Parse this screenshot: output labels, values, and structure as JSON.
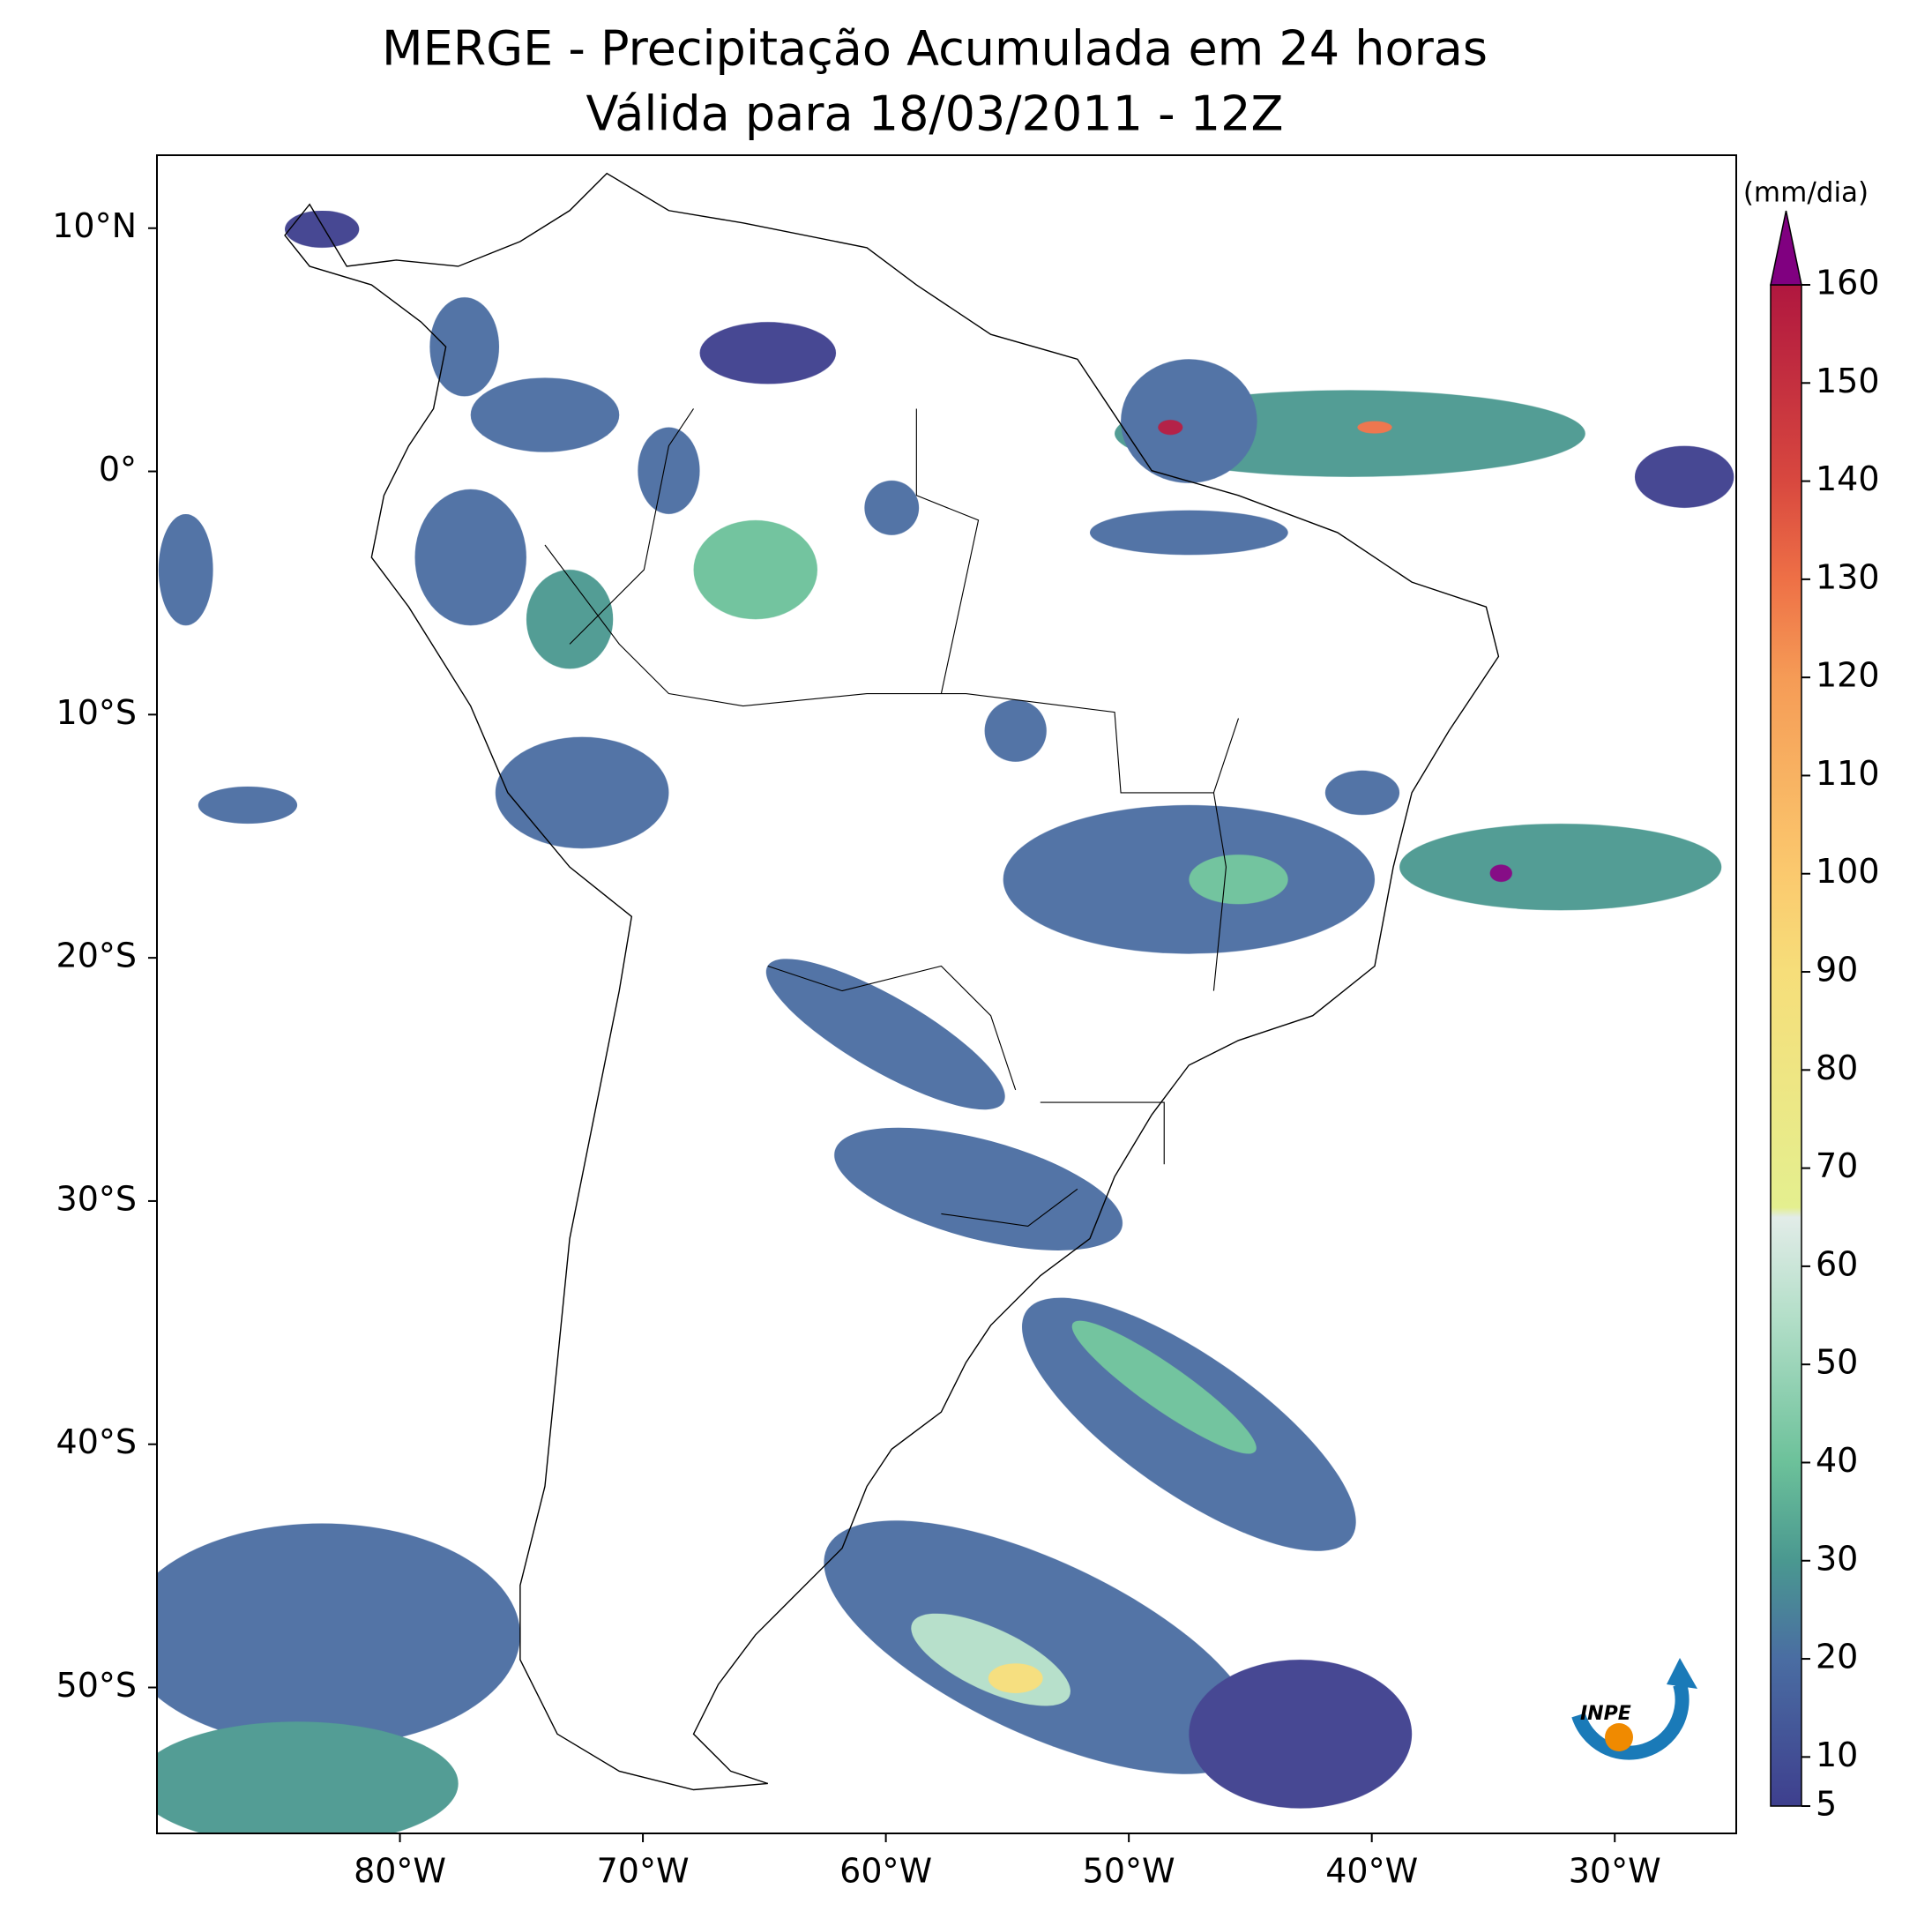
{
  "title": "MERGE - Precipitação Acumulada em 24 horas",
  "subtitle": "Válida para 18/03/2011 - 12Z",
  "map": {
    "lon_range": [
      -90,
      -25
    ],
    "lat_range": [
      -56,
      13
    ],
    "xticks": [
      {
        "value": -80,
        "label": "80°W"
      },
      {
        "value": -70,
        "label": "70°W"
      },
      {
        "value": -60,
        "label": "60°W"
      },
      {
        "value": -50,
        "label": "50°W"
      },
      {
        "value": -40,
        "label": "40°W"
      },
      {
        "value": -30,
        "label": "30°W"
      }
    ],
    "yticks": [
      {
        "value": 10,
        "label": "10°N"
      },
      {
        "value": 0,
        "label": "0°"
      },
      {
        "value": -10,
        "label": "10°S"
      },
      {
        "value": -20,
        "label": "20°S"
      },
      {
        "value": -30,
        "label": "30°S"
      },
      {
        "value": -40,
        "label": "40°S"
      },
      {
        "value": -50,
        "label": "50°S"
      }
    ]
  },
  "colorbar": {
    "label": "(mm/dia)",
    "range": [
      5,
      160
    ],
    "ticks": [
      5,
      10,
      20,
      30,
      40,
      50,
      60,
      70,
      80,
      90,
      100,
      110,
      120,
      130,
      140,
      150,
      160
    ],
    "color_stops": [
      {
        "value": 5,
        "color": "#3e3f8e"
      },
      {
        "value": 20,
        "color": "#4a6da2"
      },
      {
        "value": 30,
        "color": "#4a9890"
      },
      {
        "value": 40,
        "color": "#6cc19a"
      },
      {
        "value": 55,
        "color": "#b4dfc9"
      },
      {
        "value": 65,
        "color": "#e2ece8"
      },
      {
        "value": 66,
        "color": "#e4ef8f"
      },
      {
        "value": 90,
        "color": "#f6de7a"
      },
      {
        "value": 100,
        "color": "#fbc96e"
      },
      {
        "value": 120,
        "color": "#f59b56"
      },
      {
        "value": 130,
        "color": "#ee7046"
      },
      {
        "value": 140,
        "color": "#d8483f"
      },
      {
        "value": 160,
        "color": "#b0173f"
      }
    ],
    "extend_color": "#800080"
  },
  "logo": "INPE"
}
